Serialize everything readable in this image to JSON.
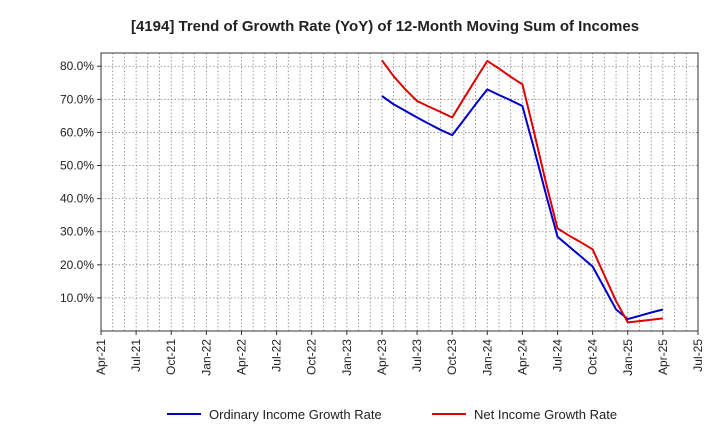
{
  "chart_data": {
    "type": "line",
    "title": "[4194]  Trend of Growth Rate (YoY) of 12-Month Moving Sum of Incomes",
    "xlabel": "",
    "ylabel": "",
    "x_ticks": [
      "Apr-21",
      "Jul-21",
      "Oct-21",
      "Jan-22",
      "Apr-22",
      "Jul-22",
      "Oct-22",
      "Jan-23",
      "Apr-23",
      "Jul-23",
      "Oct-23",
      "Jan-24",
      "Apr-24",
      "Jul-24",
      "Oct-24",
      "Jan-25",
      "Apr-25",
      "Jul-25"
    ],
    "y_ticks": [
      "10.0%",
      "20.0%",
      "30.0%",
      "40.0%",
      "50.0%",
      "60.0%",
      "70.0%",
      "80.0%"
    ],
    "ylim": [
      0,
      84
    ],
    "grid": true,
    "legend_position": "bottom",
    "series": [
      {
        "name": "Ordinary Income Growth Rate",
        "color": "#0000cc",
        "x": [
          "Apr-23",
          "May-23",
          "Jun-23",
          "Jul-23",
          "Aug-23",
          "Sep-23",
          "Oct-23",
          "Nov-23",
          "Dec-23",
          "Jan-24",
          "Feb-24",
          "Mar-24",
          "Apr-24",
          "May-24",
          "Jun-24",
          "Jul-24",
          "Aug-24",
          "Sep-24",
          "Oct-24",
          "Nov-24",
          "Dec-24",
          "Jan-25",
          "Feb-25",
          "Mar-25",
          "Apr-25"
        ],
        "values": [
          71.0,
          68.5,
          66.5,
          64.5,
          62.6,
          60.8,
          59.2,
          63.8,
          68.5,
          73.0,
          71.3,
          69.7,
          68.0,
          55.0,
          41.5,
          28.5,
          25.5,
          22.5,
          19.5,
          13.0,
          6.5,
          3.6,
          4.6,
          5.6,
          6.5
        ]
      },
      {
        "name": "Net Income Growth Rate",
        "color": "#dd0000",
        "x": [
          "Apr-23",
          "May-23",
          "Jun-23",
          "Jul-23",
          "Aug-23",
          "Sep-23",
          "Oct-23",
          "Nov-23",
          "Dec-23",
          "Jan-24",
          "Feb-24",
          "Mar-24",
          "Apr-24",
          "May-24",
          "Jun-24",
          "Jul-24",
          "Aug-24",
          "Sep-24",
          "Oct-24",
          "Nov-24",
          "Dec-24",
          "Jan-25",
          "Feb-25",
          "Mar-25",
          "Apr-25"
        ],
        "values": [
          81.8,
          77.0,
          73.0,
          69.5,
          67.8,
          66.2,
          64.5,
          70.3,
          76.0,
          81.6,
          79.3,
          76.8,
          74.5,
          60.0,
          45.0,
          31.0,
          28.8,
          26.8,
          24.7,
          16.8,
          9.0,
          2.6,
          3.0,
          3.4,
          3.8
        ]
      }
    ]
  }
}
